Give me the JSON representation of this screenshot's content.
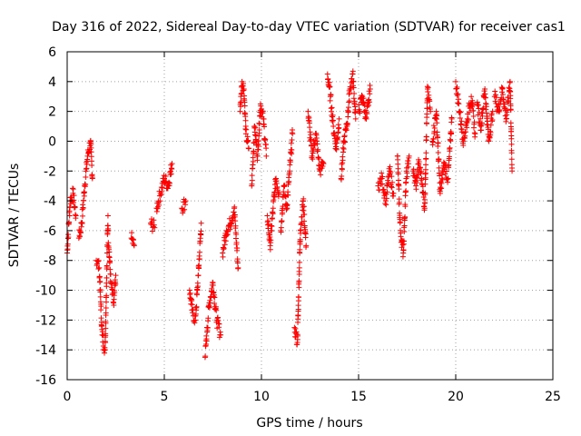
{
  "chart_data": {
    "type": "scatter",
    "title": "Day 316 of 2022, Sidereal Day-to-day VTEC variation (SDTVAR) for receiver cas1",
    "xlabel": "GPS time / hours",
    "ylabel": "SDTVAR / TECUs",
    "xlim": [
      0,
      25
    ],
    "ylim": [
      -16,
      6
    ],
    "xticks": [
      0,
      5,
      10,
      15,
      20,
      25
    ],
    "yticks": [
      -16,
      -14,
      -12,
      -10,
      -8,
      -6,
      -4,
      -2,
      0,
      2,
      4,
      6
    ],
    "grid": true,
    "marker": "+",
    "color": "#ff0000",
    "segments": [
      {
        "x": [
          0.0,
          0.15,
          0.3,
          0.45
        ],
        "y": [
          -7.5,
          -4.0,
          -3.5,
          -5.0
        ]
      },
      {
        "x": [
          0.6,
          0.75,
          0.9,
          1.05,
          1.2,
          1.3
        ],
        "y": [
          -6.5,
          -5.5,
          -3.0,
          -1.0,
          0.0,
          -2.5
        ]
      },
      {
        "x": [
          1.5,
          1.65,
          1.8,
          1.95,
          2.1
        ],
        "y": [
          -8.0,
          -8.5,
          -13.0,
          -14.0,
          -5.0
        ]
      },
      {
        "x": [
          2.1,
          2.25,
          2.4,
          2.5
        ],
        "y": [
          -6.0,
          -9.5,
          -11.0,
          -9.0
        ]
      },
      {
        "x": [
          3.3,
          3.45
        ],
        "y": [
          -6.5,
          -7.0
        ]
      },
      {
        "x": [
          4.3,
          4.5
        ],
        "y": [
          -5.5,
          -5.8
        ]
      },
      {
        "x": [
          4.6,
          4.8,
          5.0,
          5.2,
          5.4
        ],
        "y": [
          -4.5,
          -3.5,
          -2.5,
          -3.0,
          -1.5
        ]
      },
      {
        "x": [
          5.9,
          6.1
        ],
        "y": [
          -4.5,
          -4.0
        ]
      },
      {
        "x": [
          6.3,
          6.45,
          6.6,
          6.75,
          6.9
        ],
        "y": [
          -10.0,
          -11.5,
          -12.0,
          -9.0,
          -5.5
        ]
      },
      {
        "x": [
          7.1,
          7.3,
          7.5,
          7.7,
          7.9
        ],
        "y": [
          -14.5,
          -11.0,
          -9.5,
          -12.0,
          -13.0
        ]
      },
      {
        "x": [
          8.0,
          8.2,
          8.4,
          8.6,
          8.8
        ],
        "y": [
          -7.5,
          -6.0,
          -5.5,
          -4.5,
          -8.5
        ]
      },
      {
        "x": [
          8.9,
          9.0,
          9.1,
          9.2,
          9.35
        ],
        "y": [
          2.0,
          4.0,
          3.5,
          0.5,
          -0.5
        ]
      },
      {
        "x": [
          9.5,
          9.65,
          9.8,
          9.95,
          10.1,
          10.25
        ],
        "y": [
          -3.0,
          1.0,
          -1.0,
          2.5,
          1.5,
          -1.0
        ]
      },
      {
        "x": [
          10.3,
          10.45,
          10.6,
          10.75,
          10.9
        ],
        "y": [
          -5.0,
          -7.0,
          -4.5,
          -2.5,
          -3.5
        ]
      },
      {
        "x": [
          11.0,
          11.15,
          11.3,
          11.45,
          11.6
        ],
        "y": [
          -6.0,
          -3.0,
          -4.5,
          -2.0,
          0.5
        ]
      },
      {
        "x": [
          11.7,
          11.85,
          12.0,
          12.15,
          12.3
        ],
        "y": [
          -12.5,
          -13.5,
          -6.0,
          -4.0,
          -7.0
        ]
      },
      {
        "x": [
          12.4,
          12.6,
          12.8,
          13.0,
          13.2
        ],
        "y": [
          2.0,
          -1.0,
          0.5,
          -2.0,
          -1.5
        ]
      },
      {
        "x": [
          13.4,
          13.55,
          13.7,
          13.85,
          14.0
        ],
        "y": [
          4.5,
          3.0,
          1.0,
          -0.5,
          1.5
        ]
      },
      {
        "x": [
          14.1,
          14.25,
          14.4,
          14.55,
          14.7,
          14.85
        ],
        "y": [
          -2.5,
          0.0,
          1.0,
          3.5,
          4.5,
          1.5
        ]
      },
      {
        "x": [
          15.0,
          15.2,
          15.4,
          15.6
        ],
        "y": [
          2.0,
          3.0,
          1.5,
          3.5
        ]
      },
      {
        "x": [
          16.0,
          16.2,
          16.4,
          16.6,
          16.8
        ],
        "y": [
          -3.0,
          -2.5,
          -4.0,
          -2.0,
          -3.5
        ]
      },
      {
        "x": [
          17.0,
          17.15,
          17.3,
          17.45,
          17.6
        ],
        "y": [
          -1.0,
          -6.0,
          -7.5,
          -2.5,
          -1.0
        ]
      },
      {
        "x": [
          17.8,
          17.95,
          18.1,
          18.25,
          18.4,
          18.55,
          18.7
        ],
        "y": [
          -2.0,
          -3.0,
          -1.5,
          -2.5,
          -4.5,
          3.5,
          2.0
        ]
      },
      {
        "x": [
          18.8,
          19.0,
          19.2,
          19.4,
          19.6,
          19.8
        ],
        "y": [
          0.0,
          2.0,
          -3.5,
          -1.5,
          -2.5,
          1.5
        ]
      },
      {
        "x": [
          20.0,
          20.2,
          20.4,
          20.6,
          20.8,
          21.0
        ],
        "y": [
          4.0,
          2.0,
          0.0,
          1.5,
          3.0,
          0.5
        ]
      },
      {
        "x": [
          21.1,
          21.3,
          21.5,
          21.7,
          21.9
        ],
        "y": [
          2.5,
          1.0,
          3.5,
          0.0,
          2.0
        ]
      },
      {
        "x": [
          22.0,
          22.2,
          22.4,
          22.6,
          22.8,
          22.9
        ],
        "y": [
          3.0,
          2.0,
          3.5,
          1.5,
          4.0,
          -2.0
        ]
      }
    ]
  }
}
